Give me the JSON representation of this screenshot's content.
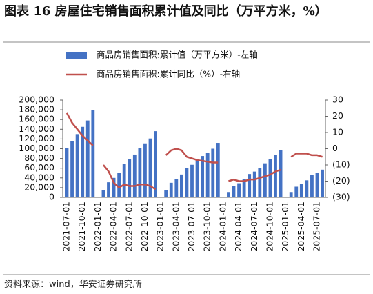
{
  "chart_data": {
    "type": "bar+line",
    "title": "图表 16  房屋住宅销售面积累计值及同比（万平方米，%）",
    "source": "资料来源：wind，华安证券研究所",
    "categories": [
      "2021-07-01",
      null,
      null,
      "2021-10-01",
      null,
      null,
      "2022-01-01",
      null,
      null,
      "2022-04-01",
      null,
      null,
      "2022-07-01",
      null,
      null,
      "2022-10-01",
      null,
      null,
      "2023-01-01",
      null,
      null,
      "2023-04-01",
      null,
      null,
      "2023-07-01",
      null,
      null,
      "2023-10-01",
      null,
      null,
      "2024-01-01",
      null,
      null,
      "2024-04-01",
      null,
      null,
      "2024-07-01",
      null,
      null,
      "2024-10-01",
      null,
      null,
      "2025-01-01",
      null,
      null,
      "2025-04-01",
      null,
      null,
      "2025-07-01",
      null
    ],
    "series": [
      {
        "name": "商品房销售面积:累计值（万平方米）-左轴",
        "type": "bar",
        "color": "#4472c4",
        "values": [
          102000,
          115000,
          130000,
          145000,
          158000,
          179000,
          null,
          15000,
          31000,
          40000,
          51000,
          69000,
          78000,
          88000,
          101000,
          111000,
          121000,
          136000,
          null,
          15000,
          30000,
          38000,
          47000,
          60000,
          67000,
          76000,
          85000,
          92000,
          100000,
          112000,
          null,
          11000,
          23000,
          29000,
          37000,
          48000,
          53000,
          60000,
          70000,
          79000,
          87000,
          97000,
          null,
          11000,
          22000,
          28000,
          35000,
          46000,
          51000,
          57000
        ]
      },
      {
        "name": "商品房销售面积:累计同比（%）-右轴",
        "type": "line",
        "axis": "y2",
        "color": "#c0504d",
        "values": [
          22,
          16,
          12,
          8,
          5,
          2,
          null,
          -10,
          -14,
          -21,
          -24,
          -22,
          -23,
          -23,
          -22,
          -22,
          -23,
          -25,
          null,
          -4,
          -1,
          0,
          -1,
          -5,
          -6,
          -7,
          -7.5,
          -8,
          -8.5,
          -8.5,
          null,
          -20,
          -19,
          -20,
          -20,
          -19,
          -19,
          -18,
          -17,
          -16,
          -14,
          -13,
          null,
          -5,
          -3,
          -3,
          -3,
          -4,
          -4,
          -5
        ]
      }
    ],
    "ylim": [
      0,
      200000
    ],
    "yticks": [
      0,
      {
        "value": 20000,
        "label": "20,000"
      },
      {
        "value": 40000,
        "label": "40,000"
      },
      {
        "value": 60000,
        "label": "60,000"
      },
      {
        "value": 80000,
        "label": "80,000"
      },
      {
        "value": 100000,
        "label": "100,000"
      },
      {
        "value": 120000,
        "label": "120,000"
      },
      {
        "value": 140000,
        "label": "140,000"
      },
      {
        "value": 160000,
        "label": "160,000"
      },
      {
        "value": 180000,
        "label": "180,000"
      },
      {
        "value": 200000,
        "label": "200,000"
      }
    ],
    "y2lim": [
      -30,
      30
    ],
    "y2ticks": [
      30,
      20,
      10,
      0,
      {
        "value": -10,
        "label": "(10)"
      },
      {
        "value": -20,
        "label": "(20)"
      },
      {
        "value": -30,
        "label": "(30)"
      }
    ],
    "legend": "top-left"
  }
}
